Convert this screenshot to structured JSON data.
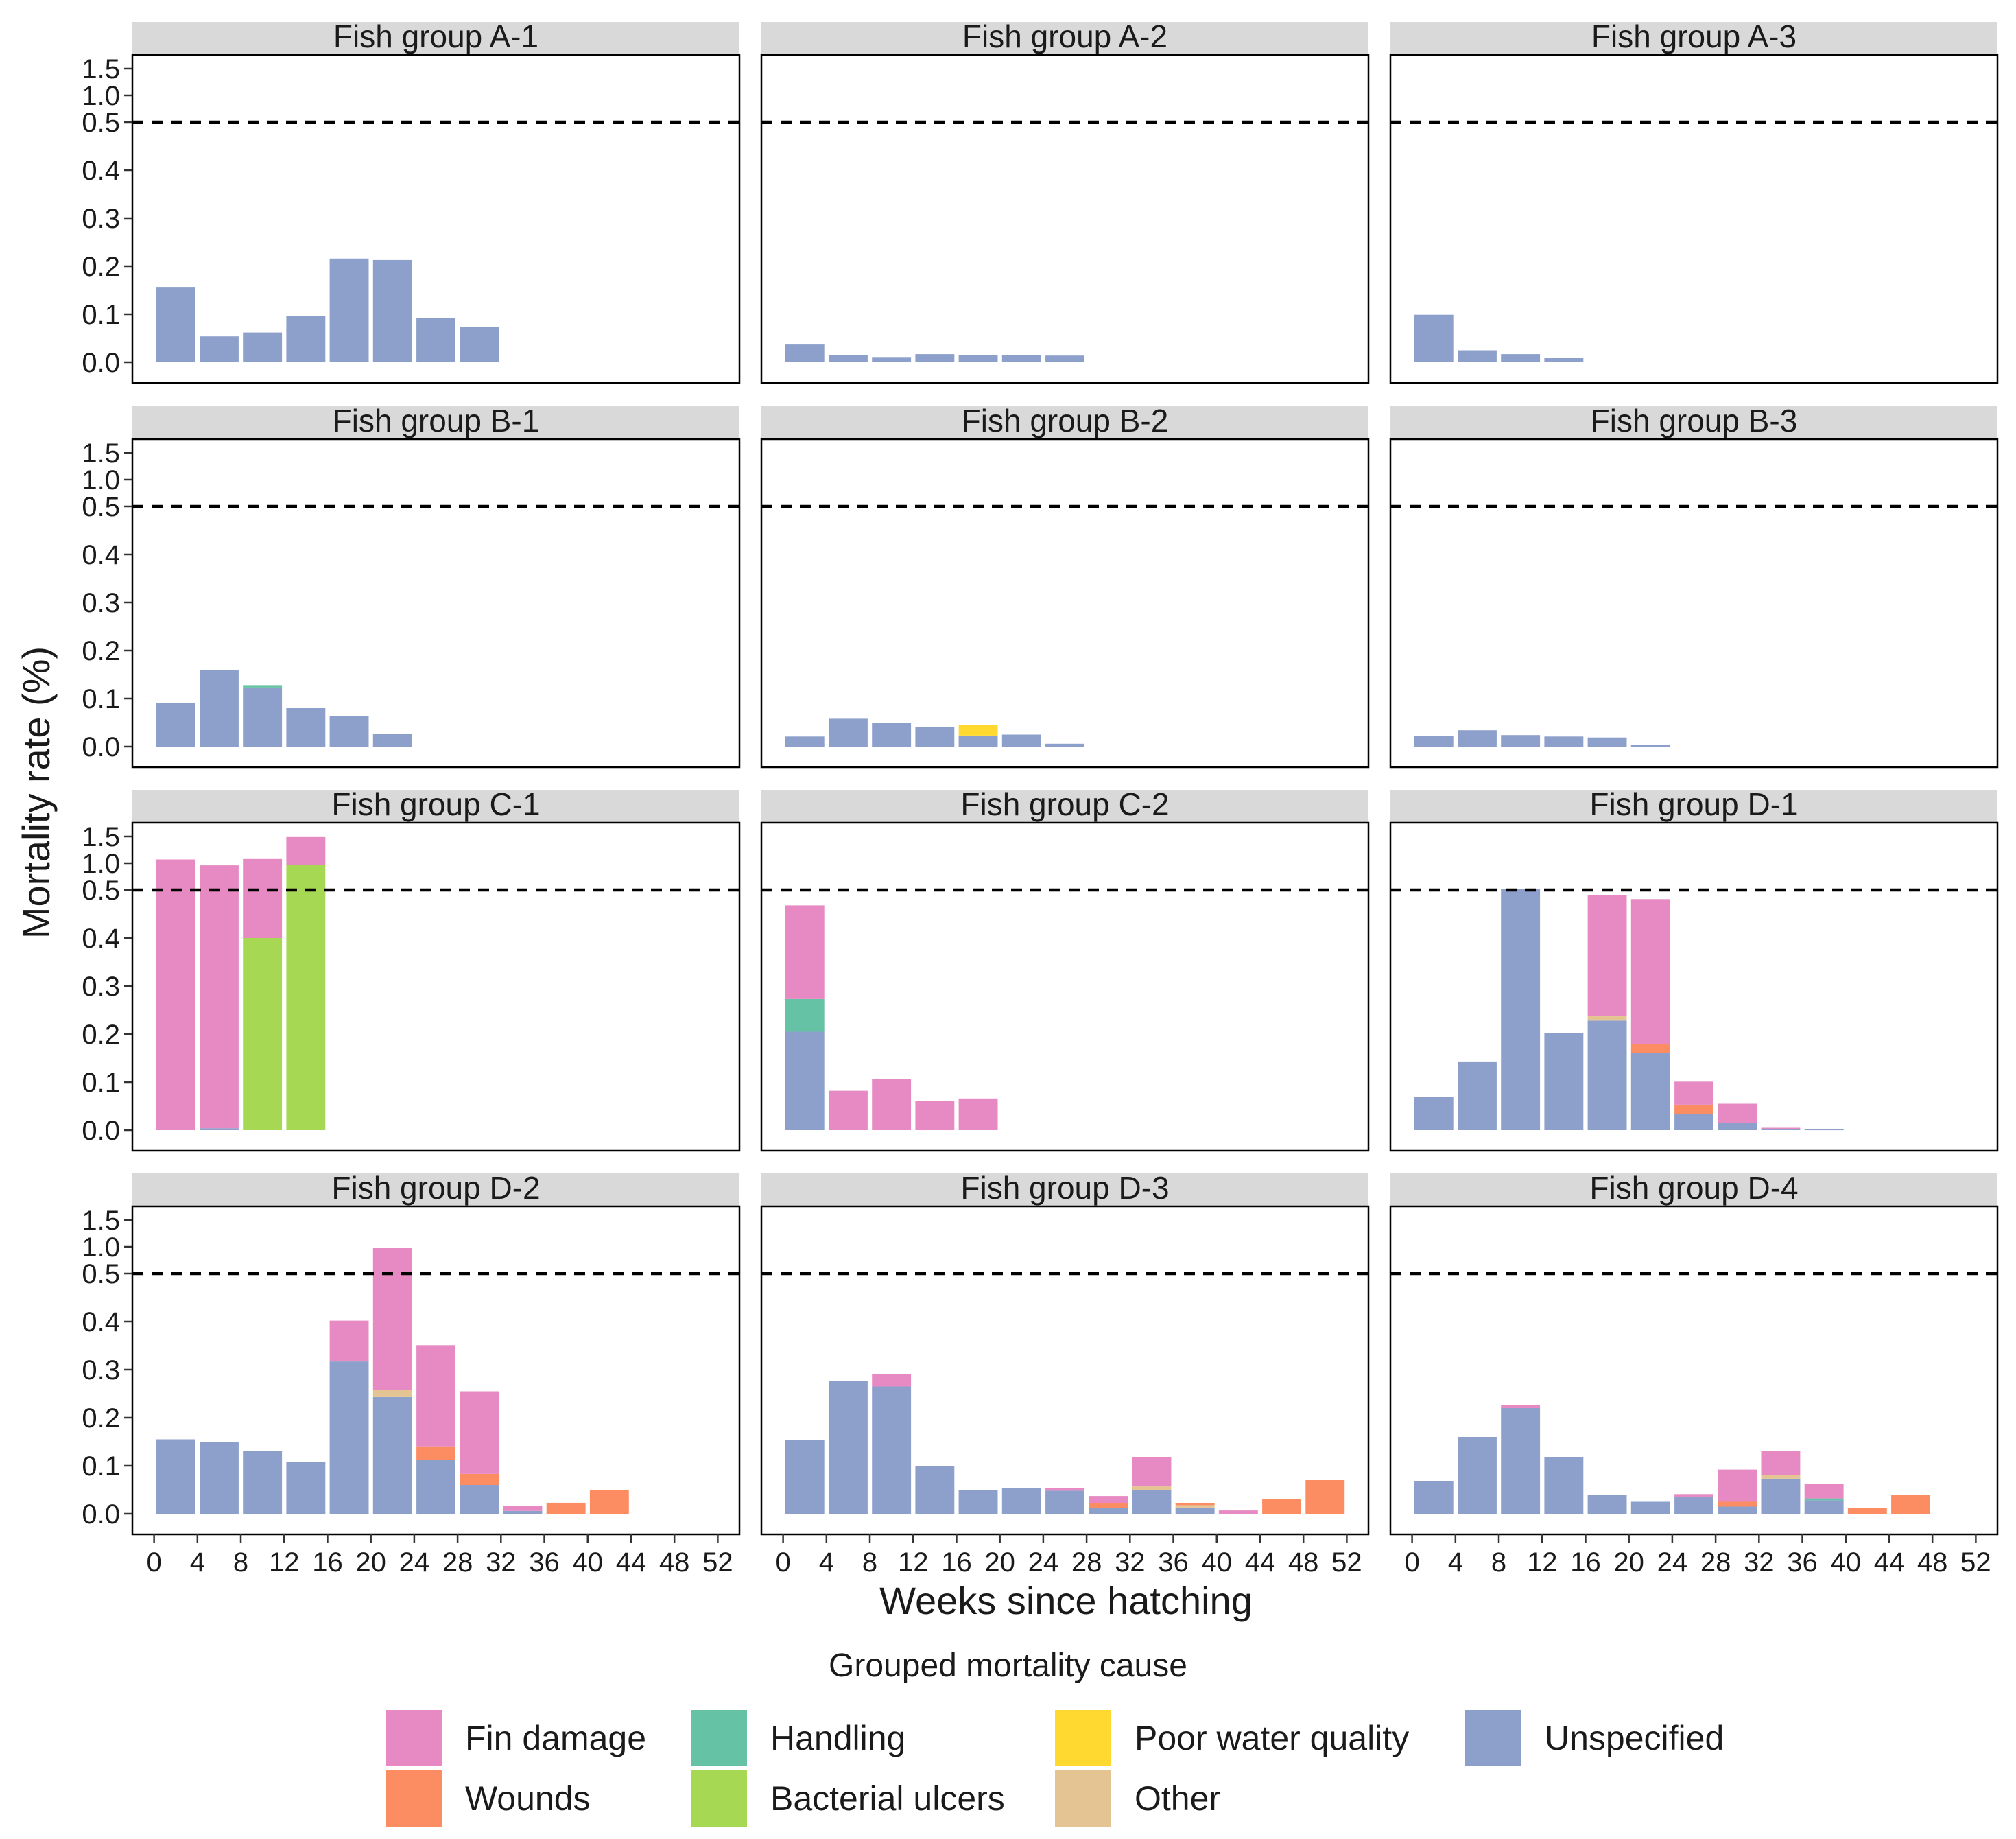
{
  "chart_data": {
    "type": "bar",
    "stacked": true,
    "facet_layout": "4 rows x 3 columns",
    "xlabel": "Weeks since hatching",
    "ylabel": "Mortality rate (%)",
    "x_ticks": [
      0,
      4,
      8,
      12,
      16,
      20,
      24,
      28,
      32,
      36,
      40,
      44,
      48,
      52
    ],
    "xlim": [
      -2,
      54
    ],
    "y_scale": "piecewise: 0-0.5 linear, 0.5-1.5 compressed",
    "y_tick_labels": [
      "0.0",
      "0.1",
      "0.2",
      "0.3",
      "0.4",
      "0.5",
      "1.0",
      "1.5"
    ],
    "reference_line": {
      "y": 0.5,
      "style": "dashed"
    },
    "legend": {
      "title": "Grouped mortality cause",
      "placement": "bottom"
    },
    "causes": [
      {
        "key": "fin",
        "name": "Fin damage",
        "color": "#e78ac3"
      },
      {
        "key": "handling",
        "name": "Handling",
        "color": "#66c2a5"
      },
      {
        "key": "water",
        "name": "Poor water quality",
        "color": "#ffd92f"
      },
      {
        "key": "unspec",
        "name": "Unspecified",
        "color": "#8da0cb"
      },
      {
        "key": "wounds",
        "name": "Wounds",
        "color": "#fc8d62"
      },
      {
        "key": "bact",
        "name": "Bacterial ulcers",
        "color": "#a6d854"
      },
      {
        "key": "other",
        "name": "Other",
        "color": "#e5c494"
      }
    ],
    "stack_order": [
      "unspec",
      "bact",
      "handling",
      "water",
      "other",
      "wounds",
      "fin"
    ],
    "bar_width_weeks": 3.6,
    "panels": [
      {
        "title": "Fish group  A-1",
        "bars": [
          {
            "week": 2,
            "unspec": 0.157
          },
          {
            "week": 6,
            "unspec": 0.054
          },
          {
            "week": 10,
            "unspec": 0.062
          },
          {
            "week": 14,
            "unspec": 0.096
          },
          {
            "week": 18,
            "unspec": 0.216
          },
          {
            "week": 22,
            "unspec": 0.213
          },
          {
            "week": 26,
            "unspec": 0.092
          },
          {
            "week": 30,
            "unspec": 0.073
          }
        ]
      },
      {
        "title": "Fish group  A-2",
        "bars": [
          {
            "week": 2,
            "unspec": 0.037
          },
          {
            "week": 6,
            "unspec": 0.015
          },
          {
            "week": 10,
            "unspec": 0.011
          },
          {
            "week": 14,
            "unspec": 0.017
          },
          {
            "week": 18,
            "unspec": 0.015
          },
          {
            "week": 22,
            "unspec": 0.015
          },
          {
            "week": 26,
            "unspec": 0.014
          }
        ]
      },
      {
        "title": "Fish group  A-3",
        "bars": [
          {
            "week": 2,
            "unspec": 0.099
          },
          {
            "week": 6,
            "unspec": 0.025
          },
          {
            "week": 10,
            "unspec": 0.017
          },
          {
            "week": 14,
            "unspec": 0.009
          }
        ]
      },
      {
        "title": "Fish group  B-1",
        "bars": [
          {
            "week": 2,
            "unspec": 0.091
          },
          {
            "week": 6,
            "unspec": 0.16
          },
          {
            "week": 10,
            "unspec": 0.123,
            "handling": 0.005
          },
          {
            "week": 14,
            "unspec": 0.08
          },
          {
            "week": 18,
            "unspec": 0.064
          },
          {
            "week": 22,
            "unspec": 0.027
          }
        ]
      },
      {
        "title": "Fish group  B-2",
        "bars": [
          {
            "week": 2,
            "unspec": 0.021
          },
          {
            "week": 6,
            "unspec": 0.058
          },
          {
            "week": 10,
            "unspec": 0.05
          },
          {
            "week": 14,
            "unspec": 0.041
          },
          {
            "week": 18,
            "unspec": 0.023,
            "water": 0.022
          },
          {
            "week": 22,
            "unspec": 0.025
          },
          {
            "week": 26,
            "unspec": 0.006
          }
        ]
      },
      {
        "title": "Fish group  B-3",
        "bars": [
          {
            "week": 2,
            "unspec": 0.022
          },
          {
            "week": 6,
            "unspec": 0.034
          },
          {
            "week": 10,
            "unspec": 0.024
          },
          {
            "week": 14,
            "unspec": 0.021
          },
          {
            "week": 18,
            "unspec": 0.019
          },
          {
            "week": 22,
            "unspec": 0.003
          }
        ]
      },
      {
        "title": "Fish group  C-1",
        "bars": [
          {
            "week": 2,
            "fin": 1.07
          },
          {
            "week": 6,
            "unspec": 0.004,
            "fin": 0.956
          },
          {
            "week": 10,
            "bact": 0.4,
            "fin": 0.68
          },
          {
            "week": 14,
            "bact": 0.97,
            "fin": 0.52
          }
        ]
      },
      {
        "title": "Fish group  C-2",
        "bars": [
          {
            "week": 2,
            "unspec": 0.205,
            "handling": 0.068,
            "fin": 0.195
          },
          {
            "week": 6,
            "fin": 0.082
          },
          {
            "week": 10,
            "fin": 0.107
          },
          {
            "week": 14,
            "fin": 0.06
          },
          {
            "week": 18,
            "fin": 0.066
          }
        ]
      },
      {
        "title": "Fish group  D-1",
        "bars": [
          {
            "week": 2,
            "unspec": 0.07
          },
          {
            "week": 6,
            "unspec": 0.143
          },
          {
            "week": 10,
            "unspec": 0.52
          },
          {
            "week": 14,
            "unspec": 0.202
          },
          {
            "week": 18,
            "unspec": 0.228,
            "other": 0.01,
            "fin": 0.252
          },
          {
            "week": 22,
            "unspec": 0.16,
            "wounds": 0.02,
            "fin": 0.301
          },
          {
            "week": 26,
            "unspec": 0.033,
            "wounds": 0.02,
            "fin": 0.048
          },
          {
            "week": 30,
            "unspec": 0.015,
            "fin": 0.04
          },
          {
            "week": 34,
            "unspec": 0.004,
            "fin": 0.001
          },
          {
            "week": 38,
            "unspec": 0.002
          }
        ]
      },
      {
        "title": "Fish group  D-2",
        "bars": [
          {
            "week": 2,
            "unspec": 0.155
          },
          {
            "week": 6,
            "unspec": 0.15
          },
          {
            "week": 10,
            "unspec": 0.13
          },
          {
            "week": 14,
            "unspec": 0.108
          },
          {
            "week": 18,
            "unspec": 0.317,
            "fin": 0.085
          },
          {
            "week": 22,
            "unspec": 0.243,
            "other": 0.015,
            "fin": 0.722
          },
          {
            "week": 26,
            "unspec": 0.112,
            "wounds": 0.027,
            "fin": 0.212
          },
          {
            "week": 30,
            "unspec": 0.06,
            "wounds": 0.023,
            "fin": 0.172
          },
          {
            "week": 34,
            "unspec": 0.006,
            "fin": 0.01
          },
          {
            "week": 38,
            "wounds": 0.023
          },
          {
            "week": 42,
            "wounds": 0.05
          }
        ]
      },
      {
        "title": "Fish group  D-3",
        "bars": [
          {
            "week": 2,
            "unspec": 0.153
          },
          {
            "week": 6,
            "unspec": 0.277
          },
          {
            "week": 10,
            "unspec": 0.265,
            "fin": 0.025
          },
          {
            "week": 14,
            "unspec": 0.099
          },
          {
            "week": 18,
            "unspec": 0.05
          },
          {
            "week": 22,
            "unspec": 0.053
          },
          {
            "week": 26,
            "unspec": 0.048,
            "fin": 0.005
          },
          {
            "week": 30,
            "unspec": 0.012,
            "wounds": 0.01,
            "fin": 0.015
          },
          {
            "week": 34,
            "unspec": 0.05,
            "other": 0.007,
            "fin": 0.061
          },
          {
            "week": 38,
            "unspec": 0.013,
            "other": 0.005,
            "wounds": 0.004
          },
          {
            "week": 42,
            "fin": 0.007
          },
          {
            "week": 46,
            "wounds": 0.03
          },
          {
            "week": 50,
            "wounds": 0.07
          }
        ]
      },
      {
        "title": "Fish group  D-4",
        "bars": [
          {
            "week": 2,
            "unspec": 0.068
          },
          {
            "week": 6,
            "unspec": 0.16
          },
          {
            "week": 10,
            "unspec": 0.22,
            "fin": 0.007
          },
          {
            "week": 14,
            "unspec": 0.118
          },
          {
            "week": 18,
            "unspec": 0.04
          },
          {
            "week": 22,
            "unspec": 0.025
          },
          {
            "week": 26,
            "unspec": 0.035,
            "fin": 0.006
          },
          {
            "week": 30,
            "unspec": 0.015,
            "wounds": 0.01,
            "fin": 0.067
          },
          {
            "week": 34,
            "unspec": 0.073,
            "other": 0.007,
            "fin": 0.05
          },
          {
            "week": 38,
            "unspec": 0.028,
            "handling": 0.004,
            "fin": 0.03
          },
          {
            "week": 42,
            "wounds": 0.012
          },
          {
            "week": 46,
            "wounds": 0.04
          }
        ]
      }
    ]
  }
}
